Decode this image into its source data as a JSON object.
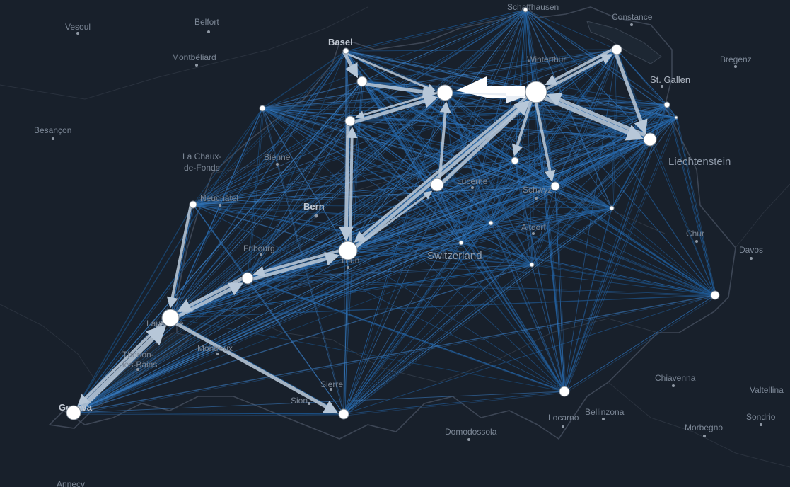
{
  "map": {
    "colors": {
      "background": "#18202b",
      "boundary": "#3a4452",
      "flow": "#2b6cb0",
      "flow_light": "#4f8fcf",
      "strong_flow": "#b7c7d8",
      "node": "#ffffff"
    },
    "places": [
      {
        "id": "vesoul",
        "name": "Vesoul"
      },
      {
        "id": "belfort",
        "name": "Belfort"
      },
      {
        "id": "montbeliard",
        "name": "Montbéliard"
      },
      {
        "id": "basel",
        "name": "Basel"
      },
      {
        "id": "schaffhausen",
        "name": "Schaffhausen"
      },
      {
        "id": "constance",
        "name": "Constance"
      },
      {
        "id": "winterthur",
        "name": "Winterthur"
      },
      {
        "id": "bregenz",
        "name": "Bregenz"
      },
      {
        "id": "st-gallen",
        "name": "St. Gallen"
      },
      {
        "id": "besancon",
        "name": "Besançon"
      },
      {
        "id": "la-chaux-de-fonds-1",
        "name": "La Chaux-"
      },
      {
        "id": "la-chaux-de-fonds-2",
        "name": "de-Fonds"
      },
      {
        "id": "biel",
        "name": "Bienne"
      },
      {
        "id": "liechtenstein",
        "name": "Liechtenstein"
      },
      {
        "id": "neuchatel",
        "name": "Neuchâtel"
      },
      {
        "id": "lucerne",
        "name": "Lucerne"
      },
      {
        "id": "schwyz",
        "name": "Schwyz"
      },
      {
        "id": "bern",
        "name": "Bern"
      },
      {
        "id": "altdorf",
        "name": "Altdorf"
      },
      {
        "id": "chur",
        "name": "Chur"
      },
      {
        "id": "davos",
        "name": "Davos"
      },
      {
        "id": "fribourg",
        "name": "Fribourg"
      },
      {
        "id": "switzerland",
        "name": "Switzerland"
      },
      {
        "id": "thun",
        "name": "Thun"
      },
      {
        "id": "lausanne",
        "name": "Lausanne"
      },
      {
        "id": "montreux",
        "name": "Montreux"
      },
      {
        "id": "thonon-1",
        "name": "Thonon-"
      },
      {
        "id": "thonon-2",
        "name": "les-Bains"
      },
      {
        "id": "chiavenna",
        "name": "Chiavenna"
      },
      {
        "id": "valtellina",
        "name": "Valtellina"
      },
      {
        "id": "sierre",
        "name": "Sierre"
      },
      {
        "id": "sion",
        "name": "Sion"
      },
      {
        "id": "geneva",
        "name": "Geneva"
      },
      {
        "id": "locarno",
        "name": "Locarno"
      },
      {
        "id": "bellinzona",
        "name": "Bellinzona"
      },
      {
        "id": "sondrio",
        "name": "Sondrio"
      },
      {
        "id": "morbegno",
        "name": "Morbegno"
      },
      {
        "id": "domodossola",
        "name": "Domodossola"
      },
      {
        "id": "annecy",
        "name": "Annecy"
      }
    ],
    "nodes": [
      {
        "id": "n-basel",
        "label": "Basel node"
      },
      {
        "id": "n-basel-s",
        "label": "Basel south node"
      },
      {
        "id": "n-olten",
        "label": "Olten node"
      },
      {
        "id": "n-aarau",
        "label": "Aarau node"
      },
      {
        "id": "n-zurich",
        "label": "Zurich node"
      },
      {
        "id": "n-schaffhausen",
        "label": "Schaffhausen node"
      },
      {
        "id": "n-kreuzlingen",
        "label": "Kreuzlingen node"
      },
      {
        "id": "n-st-gallen",
        "label": "St. Gallen node"
      },
      {
        "id": "n-appenzell-1",
        "label": "Appenzell node"
      },
      {
        "id": "n-appenzell-2",
        "label": "Appenzell east node"
      },
      {
        "id": "n-jura",
        "label": "Jura node"
      },
      {
        "id": "n-zug",
        "label": "Zug node"
      },
      {
        "id": "n-lucerne",
        "label": "Lucerne node"
      },
      {
        "id": "n-schwyz",
        "label": "Schwyz node"
      },
      {
        "id": "n-glarus",
        "label": "Glarus node"
      },
      {
        "id": "n-neuchatel",
        "label": "Neuchâtel node"
      },
      {
        "id": "n-nidwalden",
        "label": "Nidwalden node"
      },
      {
        "id": "n-obwalden",
        "label": "Obwalden node"
      },
      {
        "id": "n-uri",
        "label": "Uri node"
      },
      {
        "id": "n-bern",
        "label": "Bern node"
      },
      {
        "id": "n-fribourg",
        "label": "Fribourg node"
      },
      {
        "id": "n-graubunden",
        "label": "Graubünden node"
      },
      {
        "id": "n-lausanne",
        "label": "Lausanne node"
      },
      {
        "id": "n-ticino",
        "label": "Ticino node"
      },
      {
        "id": "n-valais",
        "label": "Valais node"
      },
      {
        "id": "n-geneva",
        "label": "Geneva node"
      }
    ]
  }
}
